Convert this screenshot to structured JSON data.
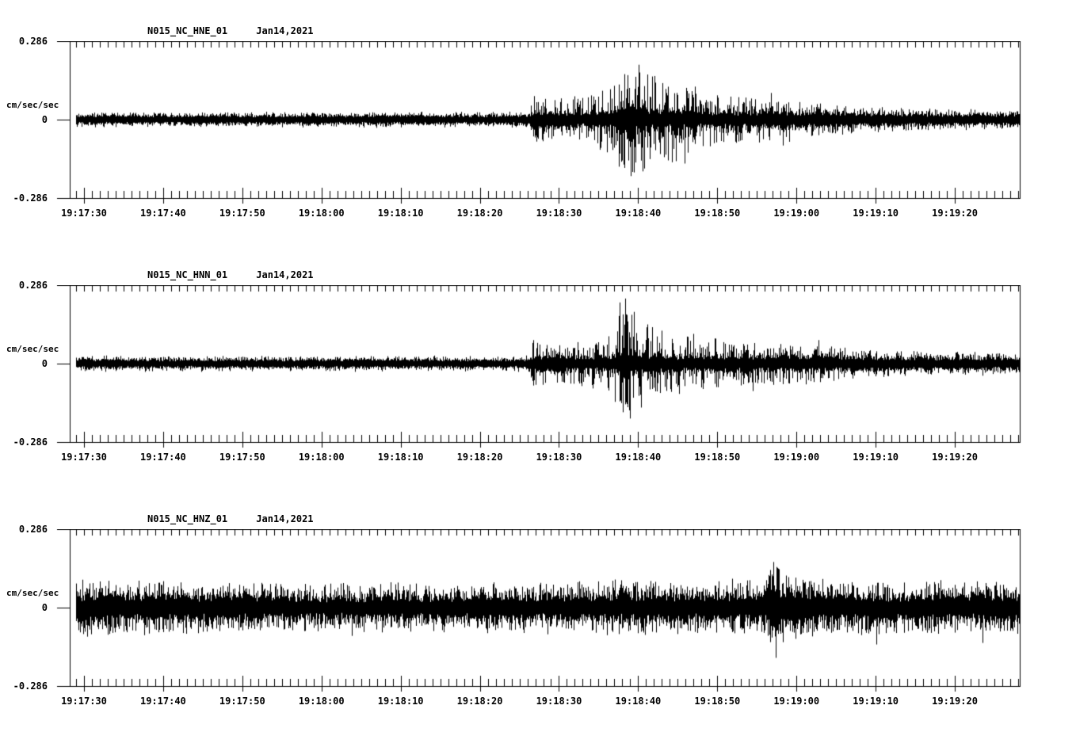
{
  "page": {
    "background": "#ffffff",
    "ink": "#000000"
  },
  "time_axis": {
    "tick_labels": [
      "19:17:30",
      "19:17:40",
      "19:17:50",
      "19:18:00",
      "19:18:10",
      "19:18:20",
      "19:18:30",
      "19:18:40",
      "19:18:50",
      "19:19:00",
      "19:19:10",
      "19:19:20"
    ],
    "minor_step_s": 1,
    "major_step_s": 10,
    "window_span_s": 120,
    "first_major_tick_offset_s": 1.8
  },
  "y_axis": {
    "unit": "cm/sec/sec",
    "tick_labels": [
      "0.286",
      "0",
      "-0.286"
    ],
    "ylim": [
      -0.286,
      0.286
    ]
  },
  "chart_data": [
    {
      "type": "line",
      "title": "N015_NC_HNE_01     Jan14,2021",
      "trace_id": "N015_NC_HNE_01",
      "date": "Jan14,2021",
      "ylabel": "cm/sec/sec",
      "y_ticks": [
        "0.286",
        "0",
        "-0.286"
      ],
      "ylim": [
        -0.286,
        0.286
      ],
      "x_ticks": [
        "19:17:30",
        "19:17:40",
        "19:17:50",
        "19:18:00",
        "19:18:10",
        "19:18:20",
        "19:18:30",
        "19:18:40",
        "19:18:50",
        "19:19:00",
        "19:19:10",
        "19:19:20"
      ],
      "estimated_peak_cm_s2": 0.2,
      "envelope_frac_of_fullscale": [
        [
          0,
          0.1
        ],
        [
          20,
          0.095
        ],
        [
          40,
          0.1
        ],
        [
          54,
          0.095
        ],
        [
          58,
          0.1
        ],
        [
          58.4,
          0.3
        ],
        [
          60,
          0.26
        ],
        [
          62,
          0.3
        ],
        [
          64,
          0.33
        ],
        [
          66,
          0.36
        ],
        [
          67.5,
          0.44
        ],
        [
          69,
          0.62
        ],
        [
          70.5,
          0.72
        ],
        [
          72,
          0.7
        ],
        [
          73.5,
          0.58
        ],
        [
          75,
          0.52
        ],
        [
          76.5,
          0.56
        ],
        [
          78.5,
          0.46
        ],
        [
          80,
          0.38
        ],
        [
          83,
          0.31
        ],
        [
          86,
          0.33
        ],
        [
          89,
          0.3
        ],
        [
          92,
          0.25
        ],
        [
          95,
          0.21
        ],
        [
          100,
          0.17
        ],
        [
          107,
          0.14
        ],
        [
          114,
          0.13
        ],
        [
          120,
          0.12
        ]
      ],
      "accent_spikes": [
        [
          58.6,
          0.3
        ],
        [
          58.9,
          -0.28
        ],
        [
          69.4,
          -0.6
        ],
        [
          70.1,
          0.58
        ],
        [
          70.9,
          -0.72
        ],
        [
          71.9,
          0.7
        ],
        [
          72.4,
          -0.66
        ],
        [
          73.6,
          0.55
        ],
        [
          75.6,
          -0.52
        ],
        [
          77.7,
          -0.56
        ],
        [
          88.6,
          0.34
        ],
        [
          90.1,
          -0.33
        ]
      ],
      "noise_model": {
        "seed": 101,
        "core_quiet": 0.52,
        "core_active": 0.2,
        "spike_pow": 2.8
      }
    },
    {
      "type": "line",
      "title": "N015_NC_HNN_01     Jan14,2021",
      "trace_id": "N015_NC_HNN_01",
      "date": "Jan14,2021",
      "ylabel": "cm/sec/sec",
      "y_ticks": [
        "0.286",
        "0",
        "-0.286"
      ],
      "ylim": [
        -0.286,
        0.286
      ],
      "x_ticks": [
        "19:17:30",
        "19:17:40",
        "19:17:50",
        "19:18:00",
        "19:18:10",
        "19:18:20",
        "19:18:30",
        "19:18:40",
        "19:18:50",
        "19:19:00",
        "19:19:10",
        "19:19:20"
      ],
      "estimated_peak_cm_s2": 0.24,
      "envelope_frac_of_fullscale": [
        [
          0,
          0.1
        ],
        [
          20,
          0.096
        ],
        [
          40,
          0.1
        ],
        [
          54,
          0.096
        ],
        [
          58,
          0.1
        ],
        [
          58.4,
          0.3
        ],
        [
          60,
          0.25
        ],
        [
          62,
          0.27
        ],
        [
          64,
          0.28
        ],
        [
          66,
          0.3
        ],
        [
          67.8,
          0.38
        ],
        [
          69,
          0.6
        ],
        [
          69.8,
          0.82
        ],
        [
          70.8,
          0.72
        ],
        [
          72,
          0.6
        ],
        [
          73.5,
          0.5
        ],
        [
          75,
          0.44
        ],
        [
          77,
          0.4
        ],
        [
          79.5,
          0.42
        ],
        [
          81,
          0.34
        ],
        [
          83.5,
          0.3
        ],
        [
          86,
          0.3
        ],
        [
          88,
          0.26
        ],
        [
          90.5,
          0.28
        ],
        [
          93,
          0.26
        ],
        [
          95.5,
          0.24
        ],
        [
          98,
          0.2
        ],
        [
          101,
          0.18
        ],
        [
          106,
          0.16
        ],
        [
          112,
          0.15
        ],
        [
          120,
          0.14
        ]
      ],
      "accent_spikes": [
        [
          58.5,
          0.3
        ],
        [
          58.8,
          -0.27
        ],
        [
          69.5,
          0.78
        ],
        [
          69.9,
          -0.62
        ],
        [
          70.2,
          0.83
        ],
        [
          70.8,
          -0.7
        ],
        [
          71.3,
          0.66
        ],
        [
          72.2,
          -0.56
        ],
        [
          73.0,
          0.5
        ],
        [
          86.3,
          -0.35
        ],
        [
          94.6,
          0.3
        ]
      ],
      "noise_model": {
        "seed": 202,
        "core_quiet": 0.52,
        "core_active": 0.2,
        "spike_pow": 2.8
      }
    },
    {
      "type": "line",
      "title": "N015_NC_HNZ_01     Jan14,2021",
      "trace_id": "N015_NC_HNZ_01",
      "date": "Jan14,2021",
      "ylabel": "cm/sec/sec",
      "y_ticks": [
        "0.286",
        "0",
        "-0.286"
      ],
      "ylim": [
        -0.286,
        0.286
      ],
      "x_ticks": [
        "19:17:30",
        "19:17:40",
        "19:17:50",
        "19:18:00",
        "19:18:10",
        "19:18:20",
        "19:18:30",
        "19:18:40",
        "19:18:50",
        "19:19:00",
        "19:19:10",
        "19:19:20"
      ],
      "estimated_peak_cm_s2": 0.18,
      "envelope_frac_of_fullscale": [
        [
          0,
          0.36
        ],
        [
          8,
          0.34
        ],
        [
          16,
          0.33
        ],
        [
          25,
          0.31
        ],
        [
          33,
          0.3
        ],
        [
          41,
          0.31
        ],
        [
          48,
          0.3
        ],
        [
          55,
          0.31
        ],
        [
          60,
          0.32
        ],
        [
          65,
          0.33
        ],
        [
          70,
          0.34
        ],
        [
          74,
          0.33
        ],
        [
          78,
          0.33
        ],
        [
          82,
          0.34
        ],
        [
          86,
          0.35
        ],
        [
          87.8,
          0.4
        ],
        [
          88.8,
          0.62
        ],
        [
          89.8,
          0.55
        ],
        [
          91,
          0.44
        ],
        [
          93,
          0.4
        ],
        [
          95,
          0.37
        ],
        [
          98,
          0.35
        ],
        [
          102,
          0.34
        ],
        [
          106,
          0.33
        ],
        [
          110,
          0.34
        ],
        [
          114,
          0.33
        ],
        [
          120,
          0.33
        ]
      ],
      "accent_spikes": [
        [
          35.6,
          -0.36
        ],
        [
          60.4,
          -0.34
        ],
        [
          88.9,
          0.45
        ],
        [
          89.15,
          -0.64
        ],
        [
          89.5,
          0.42
        ],
        [
          101.9,
          -0.47
        ],
        [
          115.3,
          -0.45
        ]
      ],
      "noise_model": {
        "seed": 303,
        "core_quiet": 0.4,
        "core_active": 0.4,
        "spike_pow": 1.9
      }
    }
  ]
}
